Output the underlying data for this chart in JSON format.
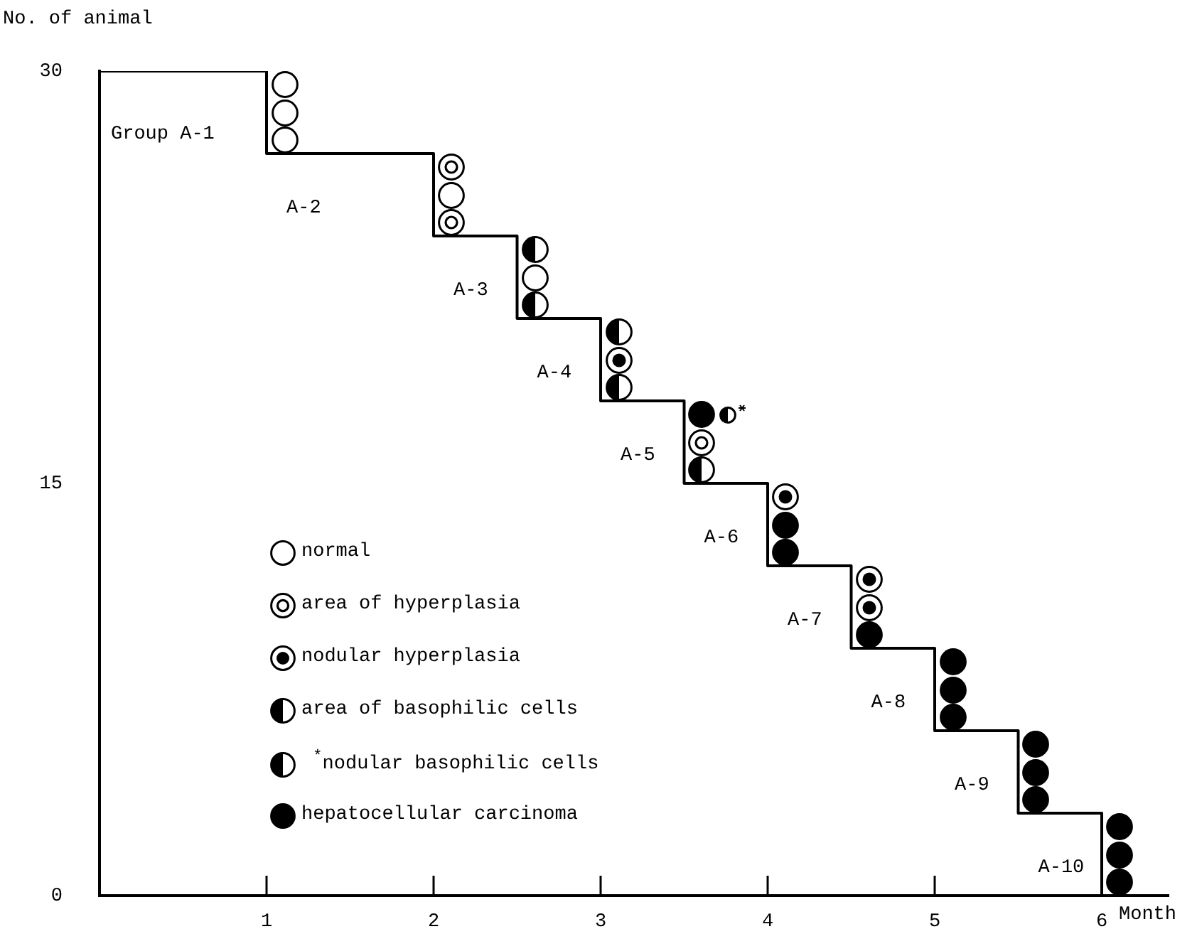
{
  "chart_data": {
    "type": "step",
    "xlabel": "Month",
    "ylabel": "No. of animal",
    "x": [
      0,
      1,
      2,
      2.5,
      3,
      3.5,
      4,
      4.5,
      5,
      5.5,
      6
    ],
    "values": [
      30,
      27,
      24,
      21,
      18,
      15,
      12,
      9,
      6,
      3,
      0
    ],
    "color": "#000000",
    "xlim": [
      0,
      6.4
    ],
    "xticks": [
      1,
      2,
      3,
      4,
      5,
      6
    ],
    "ylim": [
      0,
      30
    ],
    "yticks": [
      0,
      15,
      30
    ],
    "annotations": [
      "Group A-1",
      "A-2",
      "A-3",
      "A-4",
      "A-5",
      "A-6",
      "A-7",
      "A-8",
      "A-9",
      "A-10",
      "normal",
      "area of hyperplasia",
      "nodular hyperplasia",
      "area of basophilic cells",
      "$^{*}$nodular basophilic cells",
      "hepatocellular carcinoma"
    ]
  }
}
